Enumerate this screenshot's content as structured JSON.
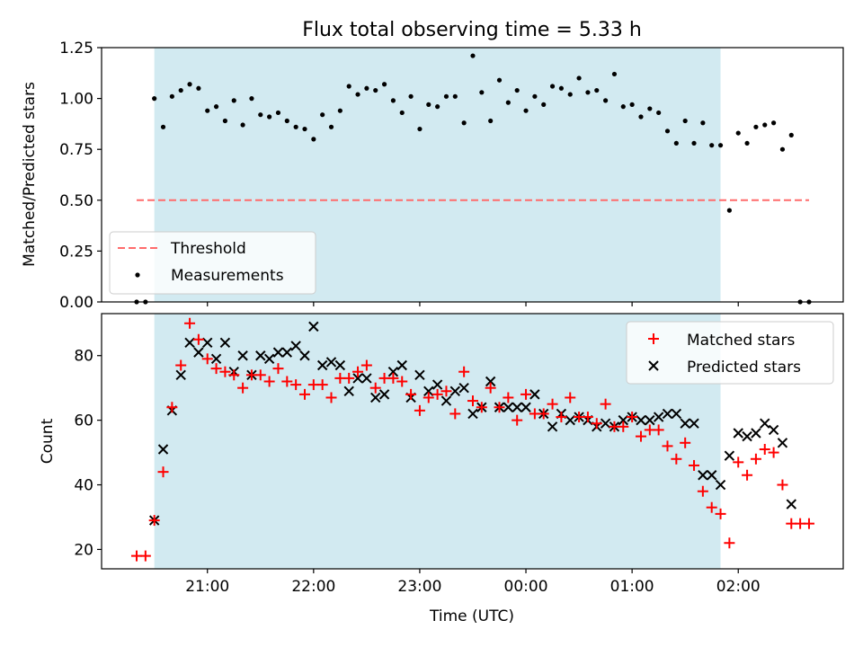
{
  "title": "Flux total observing time = 5.33 h",
  "colors": {
    "shade": "#add8e6",
    "threshold": "#ff6b6b",
    "measurement": "#000000",
    "matched": "#ff0000",
    "predicted": "#000000"
  },
  "chart_data": [
    {
      "type": "scatter",
      "ylabel": "Matched/Predicted stars",
      "ylim": [
        0.0,
        1.25
      ],
      "yticks": [
        "0.00",
        "0.25",
        "0.50",
        "0.75",
        "1.00",
        "1.25"
      ],
      "shaded_interval": [
        "20:30",
        "01:50"
      ],
      "legend": {
        "position": "lower-left",
        "entries": [
          "Threshold",
          "Measurements"
        ]
      },
      "threshold": {
        "name": "Threshold",
        "value": 0.5,
        "x_range": [
          "20:20",
          "02:40"
        ]
      },
      "series": [
        {
          "name": "Measurements",
          "x": [
            "20:20",
            "20:25",
            "20:30",
            "20:35",
            "20:40",
            "20:45",
            "20:50",
            "20:55",
            "21:00",
            "21:05",
            "21:10",
            "21:15",
            "21:20",
            "21:25",
            "21:30",
            "21:35",
            "21:40",
            "21:45",
            "21:50",
            "21:55",
            "22:00",
            "22:05",
            "22:10",
            "22:15",
            "22:20",
            "22:25",
            "22:30",
            "22:35",
            "22:40",
            "22:45",
            "22:50",
            "22:55",
            "23:00",
            "23:05",
            "23:10",
            "23:15",
            "23:20",
            "23:25",
            "23:30",
            "23:35",
            "23:40",
            "23:45",
            "23:50",
            "23:55",
            "00:00",
            "00:05",
            "00:10",
            "00:15",
            "00:20",
            "00:25",
            "00:30",
            "00:35",
            "00:40",
            "00:45",
            "00:50",
            "00:55",
            "01:00",
            "01:05",
            "01:10",
            "01:15",
            "01:20",
            "01:25",
            "01:30",
            "01:35",
            "01:40",
            "01:45",
            "01:50",
            "01:55",
            "02:00",
            "02:05",
            "02:10",
            "02:15",
            "02:20",
            "02:25",
            "02:30",
            "02:35",
            "02:40"
          ],
          "y": [
            0.0,
            0.0,
            1.0,
            0.86,
            1.01,
            1.04,
            1.07,
            1.05,
            0.94,
            0.96,
            0.89,
            0.99,
            0.87,
            1.0,
            0.92,
            0.91,
            0.93,
            0.89,
            0.86,
            0.85,
            0.8,
            0.92,
            0.86,
            0.94,
            1.06,
            1.02,
            1.05,
            1.04,
            1.07,
            0.99,
            0.93,
            1.01,
            0.85,
            0.97,
            0.96,
            1.01,
            1.01,
            0.88,
            1.21,
            1.03,
            0.89,
            1.09,
            0.98,
            1.04,
            0.94,
            1.01,
            0.97,
            1.06,
            1.05,
            1.02,
            1.1,
            1.03,
            1.04,
            0.99,
            1.12,
            0.96,
            0.97,
            0.91,
            0.95,
            0.93,
            0.84,
            0.78,
            0.89,
            0.78,
            0.88,
            0.77,
            0.77,
            0.45,
            0.83,
            0.78,
            0.86,
            0.87,
            0.88,
            0.75,
            0.82,
            0.0,
            0.0
          ]
        }
      ]
    },
    {
      "type": "scatter",
      "xlabel": "Time (UTC)",
      "ylabel": "Count",
      "ylim": [
        14,
        93
      ],
      "yticks": [
        "20",
        "40",
        "60",
        "80"
      ],
      "xticks": [
        "21:00",
        "22:00",
        "23:00",
        "00:00",
        "01:00",
        "02:00"
      ],
      "shaded_interval": [
        "20:30",
        "01:50"
      ],
      "legend": {
        "position": "top-right",
        "entries": [
          "Matched stars",
          "Predicted stars"
        ]
      },
      "series": [
        {
          "name": "Matched stars",
          "marker": "plus",
          "x": [
            "20:20",
            "20:25",
            "20:30",
            "20:35",
            "20:40",
            "20:45",
            "20:50",
            "20:55",
            "21:00",
            "21:05",
            "21:10",
            "21:15",
            "21:20",
            "21:25",
            "21:30",
            "21:35",
            "21:40",
            "21:45",
            "21:50",
            "21:55",
            "22:00",
            "22:05",
            "22:10",
            "22:15",
            "22:20",
            "22:25",
            "22:30",
            "22:35",
            "22:40",
            "22:45",
            "22:50",
            "22:55",
            "23:00",
            "23:05",
            "23:10",
            "23:15",
            "23:20",
            "23:25",
            "23:30",
            "23:35",
            "23:40",
            "23:45",
            "23:50",
            "23:55",
            "00:00",
            "00:05",
            "00:10",
            "00:15",
            "00:20",
            "00:25",
            "00:30",
            "00:35",
            "00:40",
            "00:45",
            "00:50",
            "00:55",
            "01:00",
            "01:05",
            "01:10",
            "01:15",
            "01:20",
            "01:25",
            "01:30",
            "01:35",
            "01:40",
            "01:45",
            "01:50",
            "01:55",
            "02:00",
            "02:05",
            "02:10",
            "02:15",
            "02:20",
            "02:25",
            "02:30",
            "02:35",
            "02:40"
          ],
          "y": [
            18,
            18,
            29,
            44,
            64,
            77,
            90,
            85,
            79,
            76,
            75,
            74,
            70,
            74,
            74,
            72,
            76,
            72,
            71,
            68,
            71,
            71,
            67,
            73,
            73,
            75,
            77,
            70,
            73,
            73,
            72,
            68,
            63,
            67,
            68,
            69,
            62,
            75,
            66,
            64,
            70,
            64,
            67,
            60,
            68,
            62,
            62,
            65,
            61,
            67,
            61,
            61,
            59,
            65,
            58,
            58,
            61,
            55,
            57,
            57,
            52,
            48,
            53,
            46,
            38,
            33,
            31,
            22,
            47,
            43,
            48,
            51,
            50,
            40,
            28,
            28,
            28
          ]
        },
        {
          "name": "Predicted stars",
          "marker": "x",
          "x": [
            "20:30",
            "20:35",
            "20:40",
            "20:45",
            "20:50",
            "20:55",
            "21:00",
            "21:05",
            "21:10",
            "21:15",
            "21:20",
            "21:25",
            "21:30",
            "21:35",
            "21:40",
            "21:45",
            "21:50",
            "21:55",
            "22:00",
            "22:05",
            "22:10",
            "22:15",
            "22:20",
            "22:25",
            "22:30",
            "22:35",
            "22:40",
            "22:45",
            "22:50",
            "22:55",
            "23:00",
            "23:05",
            "23:10",
            "23:15",
            "23:20",
            "23:25",
            "23:30",
            "23:35",
            "23:40",
            "23:45",
            "23:50",
            "23:55",
            "00:00",
            "00:05",
            "00:10",
            "00:15",
            "00:20",
            "00:25",
            "00:30",
            "00:35",
            "00:40",
            "00:45",
            "00:50",
            "00:55",
            "01:00",
            "01:05",
            "01:10",
            "01:15",
            "01:20",
            "01:25",
            "01:30",
            "01:35",
            "01:40",
            "01:45",
            "01:50",
            "01:55",
            "02:00",
            "02:05",
            "02:10",
            "02:15",
            "02:20",
            "02:25",
            "02:30"
          ],
          "y": [
            29,
            51,
            63,
            74,
            84,
            81,
            84,
            79,
            84,
            75,
            80,
            74,
            80,
            79,
            81,
            81,
            83,
            80,
            89,
            77,
            78,
            77,
            69,
            73,
            73,
            67,
            68,
            75,
            77,
            67,
            74,
            69,
            71,
            66,
            69,
            70,
            62,
            64,
            72,
            64,
            64,
            64,
            64,
            68,
            62,
            58,
            62,
            60,
            61,
            60,
            58,
            59,
            58,
            60,
            61,
            60,
            60,
            61,
            62,
            62,
            59,
            59,
            43,
            43,
            40,
            49,
            56,
            55,
            56,
            59,
            57,
            53,
            34
          ]
        }
      ]
    }
  ]
}
